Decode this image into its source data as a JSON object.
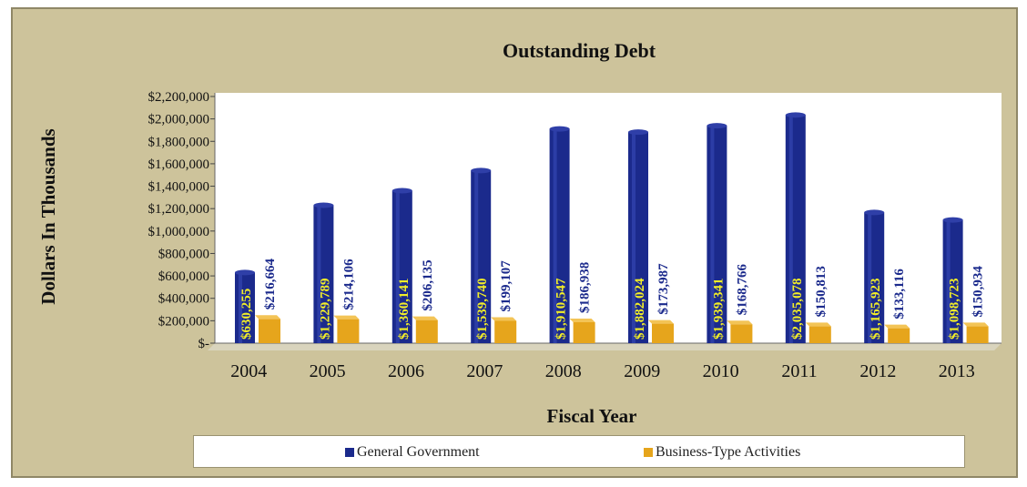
{
  "colors": {
    "general_government": "#1b2a8c",
    "business_type": "#e6a51c",
    "label_gg": "#f2ee28",
    "label_bt": "#1b2a8c",
    "background": "#cdc39b",
    "plot_area": "#ffffff"
  },
  "chart_data": {
    "type": "bar",
    "title": "Outstanding Debt",
    "xlabel": "Fiscal Year",
    "ylabel": "Dollars In Thousands",
    "categories": [
      "2004",
      "2005",
      "2006",
      "2007",
      "2008",
      "2009",
      "2010",
      "2011",
      "2012",
      "2013"
    ],
    "ylim": [
      0,
      2200000
    ],
    "yticks": [
      0,
      200000,
      400000,
      600000,
      800000,
      1000000,
      1200000,
      1400000,
      1600000,
      1800000,
      2000000,
      2200000
    ],
    "ytick_labels": [
      "$-",
      "$200,000",
      "$400,000",
      "$600,000",
      "$800,000",
      "$1,000,000",
      "$1,200,000",
      "$1,400,000",
      "$1,600,000",
      "$1,800,000",
      "$2,000,000",
      "$2,200,000"
    ],
    "series": [
      {
        "name": "General Government",
        "values": [
          630255,
          1229789,
          1360141,
          1539740,
          1910547,
          1882024,
          1939341,
          2035078,
          1165923,
          1098723
        ],
        "labels": [
          "$630,255",
          "$1,229,789",
          "$1,360,141",
          "$1,539,740",
          "$1,910,547",
          "$1,882,024",
          "$1,939,341",
          "$2,035,078",
          "$1,165,923",
          "$1,098,723"
        ]
      },
      {
        "name": "Business-Type Activities",
        "values": [
          216664,
          214106,
          206135,
          199107,
          186938,
          173987,
          168766,
          150813,
          133116,
          150934
        ],
        "labels": [
          "$216,664",
          "$214,106",
          "$206,135",
          "$199,107",
          "$186,938",
          "$173,987",
          "$168,766",
          "$150,813",
          "$133,116",
          "$150,934"
        ]
      }
    ],
    "legend_position": "bottom",
    "grid": false
  }
}
